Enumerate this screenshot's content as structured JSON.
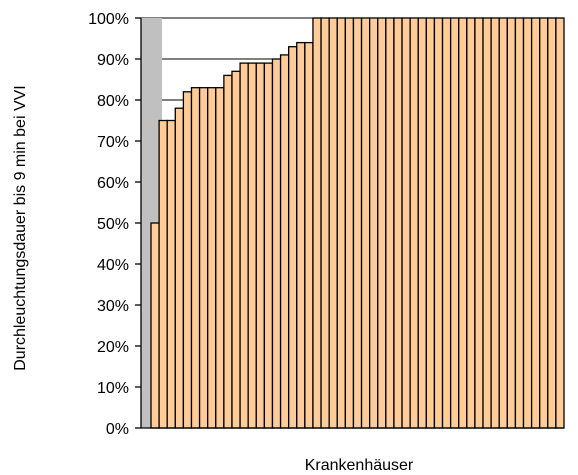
{
  "chart_data": {
    "type": "bar",
    "xlabel": "Krankenhäuser",
    "ylabel": "Durchleuchtungsdauer bis 9 min bei VVI",
    "ylim": [
      0,
      100
    ],
    "yticks": [
      "0%",
      "10%",
      "20%",
      "30%",
      "40%",
      "50%",
      "60%",
      "70%",
      "80%",
      "90%",
      "100%"
    ],
    "gridlines": true,
    "reference_bar": {
      "value": 100,
      "color": "#c0c0c0"
    },
    "bar_color": "#ffcc99",
    "values": [
      50,
      75,
      75,
      78,
      82,
      83,
      83,
      83,
      83,
      86,
      87,
      89,
      89,
      89,
      89,
      90,
      91,
      93,
      94,
      94,
      100,
      100,
      100,
      100,
      100,
      100,
      100,
      100,
      100,
      100,
      100,
      100,
      100,
      100,
      100,
      100,
      100,
      100,
      100,
      100,
      100,
      100,
      100,
      100,
      100,
      100,
      100,
      100,
      100,
      100,
      100
    ]
  }
}
